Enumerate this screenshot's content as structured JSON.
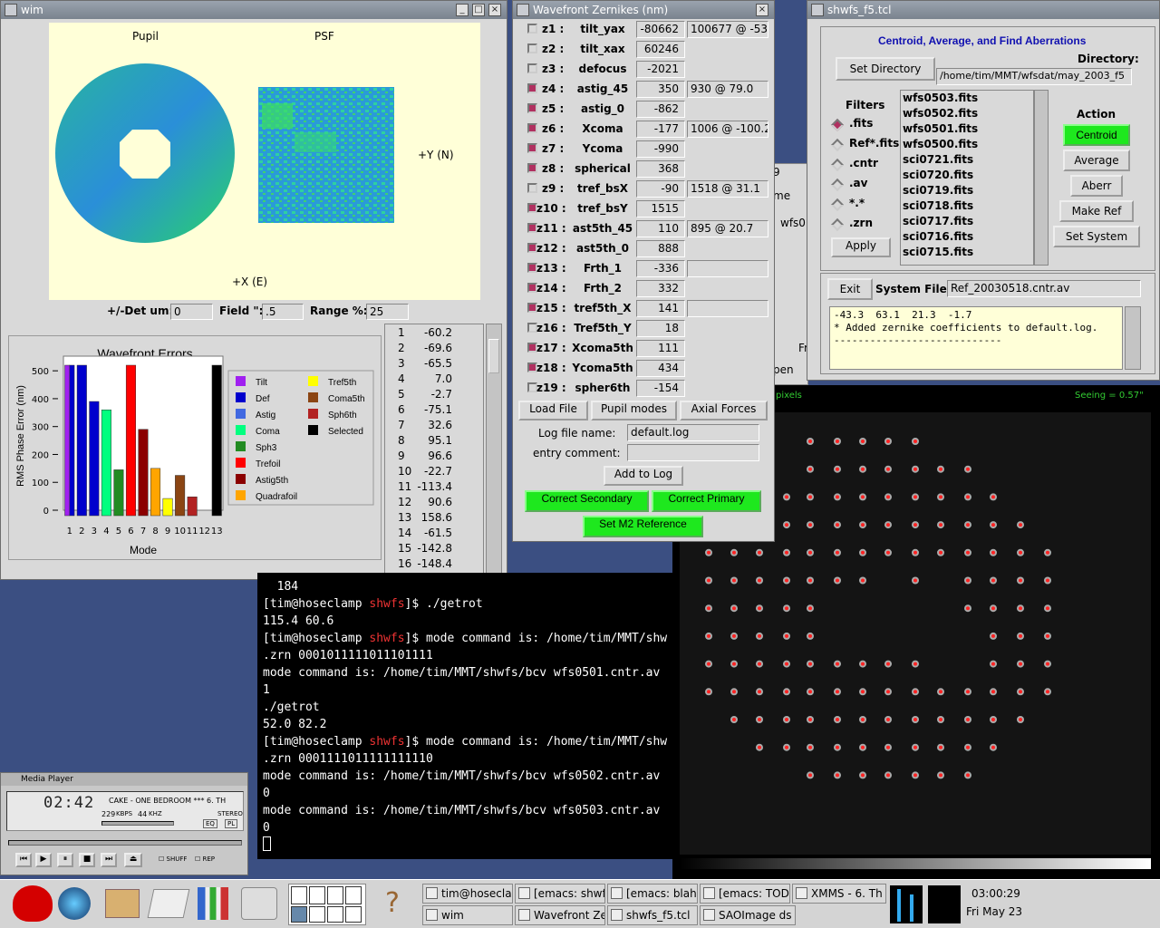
{
  "wim": {
    "title": "wim",
    "pupil_label": "Pupil",
    "psf_label": "PSF",
    "y_axis": "+Y (N)",
    "x_axis": "+X (E)",
    "det_label": "+/-Det um:",
    "det_value": "0",
    "field_label": "Field \":",
    "field_value": ".5",
    "range_label": "Range %:",
    "range_value": "25",
    "list": [
      [
        "1",
        "-60.2"
      ],
      [
        "2",
        "-69.6"
      ],
      [
        "3",
        "-65.5"
      ],
      [
        "4",
        "7.0"
      ],
      [
        "5",
        "-2.7"
      ],
      [
        "6",
        "-75.1"
      ],
      [
        "7",
        "32.6"
      ],
      [
        "8",
        "95.1"
      ],
      [
        "9",
        "96.6"
      ],
      [
        "10",
        "-22.7"
      ],
      [
        "11",
        "-113.4"
      ],
      [
        "12",
        "90.6"
      ],
      [
        "13",
        "158.6"
      ],
      [
        "14",
        "-61.5"
      ],
      [
        "15",
        "-142.8"
      ],
      [
        "16",
        "-148.4"
      ]
    ]
  },
  "chart_data": {
    "type": "bar",
    "title": "Wavefront Errors",
    "xlabel": "Mode",
    "ylabel": "RMS Phase Error (nm)",
    "ylim": [
      0,
      520
    ],
    "categories": [
      "1",
      "2",
      "3",
      "4",
      "5",
      "6",
      "7",
      "8",
      "9",
      "10",
      "11",
      "12",
      "13"
    ],
    "bars": [
      {
        "x": 1,
        "values": [
          527,
          527
        ],
        "colors": [
          "#a020f0",
          "#0000cd"
        ]
      },
      {
        "x": 2,
        "values": [
          527
        ],
        "colors": [
          "#0000cd"
        ]
      },
      {
        "x": 3,
        "values": [
          390
        ],
        "colors": [
          "#0000cd"
        ]
      },
      {
        "x": 4,
        "values": [
          360
        ],
        "colors": [
          "#00ff7f"
        ]
      },
      {
        "x": 5,
        "values": [
          145
        ],
        "colors": [
          "#228b22"
        ]
      },
      {
        "x": 6,
        "values": [
          527
        ],
        "colors": [
          "#ff0000"
        ]
      },
      {
        "x": 7,
        "values": [
          290
        ],
        "colors": [
          "#8b0000"
        ]
      },
      {
        "x": 8,
        "values": [
          150
        ],
        "colors": [
          "#ffa500"
        ]
      },
      {
        "x": 9,
        "values": [
          42
        ],
        "colors": [
          "#ffff00"
        ]
      },
      {
        "x": 10,
        "values": [
          125
        ],
        "colors": [
          "#8b4513"
        ]
      },
      {
        "x": 11,
        "values": [
          48
        ],
        "colors": [
          "#b22222"
        ]
      },
      {
        "x": 13,
        "values": [
          527
        ],
        "colors": [
          "#000000"
        ]
      }
    ],
    "yticks": [
      "0",
      "100",
      "200",
      "300",
      "400",
      "500"
    ],
    "legend": [
      {
        "name": "Tilt",
        "color": "#a020f0"
      },
      {
        "name": "Def",
        "color": "#0000cd"
      },
      {
        "name": "Astig",
        "color": "#4169e1"
      },
      {
        "name": "Coma",
        "color": "#00ff7f"
      },
      {
        "name": "Sph3",
        "color": "#228b22"
      },
      {
        "name": "Trefoil",
        "color": "#ff0000"
      },
      {
        "name": "Astig5th",
        "color": "#8b0000"
      },
      {
        "name": "Quadrafoil",
        "color": "#ffa500"
      },
      {
        "name": "Tref5th",
        "color": "#ffff00"
      },
      {
        "name": "Coma5th",
        "color": "#8b4513"
      },
      {
        "name": "Sph6th",
        "color": "#b22222"
      },
      {
        "name": "Selected",
        "color": "#000000"
      }
    ],
    "legend_placement": "right"
  },
  "zern": {
    "title": "Wavefront Zernikes (nm)",
    "rows": [
      {
        "id": "z1 :",
        "name": "tilt_yax",
        "val": "-80662",
        "ext": "100677 @ -53.",
        "on": false
      },
      {
        "id": "z2 :",
        "name": "tilt_xax",
        "val": "60246",
        "ext": "",
        "on": false
      },
      {
        "id": "z3 :",
        "name": "defocus",
        "val": "-2021",
        "ext": "",
        "on": false
      },
      {
        "id": "z4 :",
        "name": "astig_45",
        "val": "350",
        "ext": "930 @ 79.0",
        "on": true
      },
      {
        "id": "z5 :",
        "name": "astig_0",
        "val": "-862",
        "ext": "",
        "on": true
      },
      {
        "id": "z6 :",
        "name": "Xcoma",
        "val": "-177",
        "ext": "1006 @ -100.2",
        "on": true
      },
      {
        "id": "z7 :",
        "name": "Ycoma",
        "val": "-990",
        "ext": "",
        "on": true
      },
      {
        "id": "z8 :",
        "name": "spherical",
        "val": "368",
        "ext": "",
        "on": true
      },
      {
        "id": "z9 :",
        "name": "tref_bsX",
        "val": "-90",
        "ext": "1518 @ 31.1",
        "on": false
      },
      {
        "id": "z10 :",
        "name": "tref_bsY",
        "val": "1515",
        "ext": "",
        "on": true
      },
      {
        "id": "z11 :",
        "name": "ast5th_45",
        "val": "110",
        "ext": "895 @ 20.7",
        "on": true
      },
      {
        "id": "z12 :",
        "name": "ast5th_0",
        "val": "888",
        "ext": "",
        "on": true
      },
      {
        "id": "z13 :",
        "name": "Frth_1",
        "val": "-336",
        "ext": "",
        "on": true
      },
      {
        "id": "z14 :",
        "name": "Frth_2",
        "val": "332",
        "ext": "",
        "on": true
      },
      {
        "id": "z15 :",
        "name": "tref5th_X",
        "val": "141",
        "ext": "",
        "on": true
      },
      {
        "id": "z16 :",
        "name": "Tref5th_Y",
        "val": "18",
        "ext": "",
        "on": false
      },
      {
        "id": "z17 :",
        "name": "Xcoma5th",
        "val": "111",
        "ext": "",
        "on": true
      },
      {
        "id": "z18 :",
        "name": "Ycoma5th",
        "val": "434",
        "ext": "",
        "on": true
      },
      {
        "id": "z19 :",
        "name": "spher6th",
        "val": "-154",
        "ext": "",
        "on": false
      }
    ],
    "load_file": "Load File",
    "pupil_modes": "Pupil modes",
    "axial_forces": "Axial Forces",
    "log_label": "Log file name:",
    "log_value": "default.log",
    "comment_label": "entry comment:",
    "add_log": "Add to Log",
    "correct_secondary": "Correct Secondary",
    "correct_primary": "Correct Primary",
    "set_m2": "Set M2 Reference"
  },
  "shwfs": {
    "title": "shwfs_f5.tcl",
    "heading": "Centroid, Average, and Find Aberrations",
    "set_dir": "Set Directory",
    "dir_label": "Directory:",
    "dir_value": "/home/tim/MMT/wfsdat/may_2003_f5",
    "filters_label": "Filters",
    "filters": [
      ".fits",
      "Ref*.fits",
      ".cntr",
      ".av",
      "*.*",
      ".zrn"
    ],
    "apply": "Apply",
    "files": [
      "wfs0503.fits",
      "wfs0502.fits",
      "wfs0501.fits",
      "wfs0500.fits",
      "sci0721.fits",
      "sci0720.fits",
      "sci0719.fits",
      "sci0718.fits",
      "sci0717.fits",
      "sci0716.fits",
      "sci0715.fits"
    ],
    "action_label": "Action",
    "centroid": "Centroid",
    "average": "Average",
    "aberr": "Aberr",
    "make_ref": "Make Ref",
    "set_system": "Set System",
    "exit": "Exit",
    "sysfile_label": "System File:",
    "sysfile_value": "Ref_20030518.cntr.av",
    "log": [
      "-43.3  63.1  21.3  -1.7",
      "* Added zernike coefficients to default.log.",
      "----------------------------"
    ]
  },
  "sao": {
    "pixels": "pixels",
    "seeing": "Seeing = 0.57\"",
    "frag1": "9",
    "frag2": "me",
    "frag3": "wfs0",
    "frag4": "Fr",
    "frag5": "pen"
  },
  "terminal": {
    "lines": [
      {
        "t": "  184"
      },
      {
        "p": [
          "[tim@hoseclamp ",
          "shwfs",
          "]$ "
        ],
        "t": "./getrot"
      },
      {
        "t": "115.4 60.6"
      },
      {
        "p": [
          "[tim@hoseclamp ",
          "shwfs",
          "]$ "
        ],
        "t": "mode command is: /home/tim/MMT/shw"
      },
      {
        "t": ".zrn 0001011111011101111"
      },
      {
        "t": "mode command is: /home/tim/MMT/shwfs/bcv wfs0501.cntr.av"
      },
      {
        "t": "1"
      },
      {
        "t": "./getrot"
      },
      {
        "t": "52.0 82.2"
      },
      {
        "p": [
          "[tim@hoseclamp ",
          "shwfs",
          "]$ "
        ],
        "t": "mode command is: /home/tim/MMT/shw"
      },
      {
        "t": ".zrn 0001111011111111110"
      },
      {
        "t": "mode command is: /home/tim/MMT/shwfs/bcv wfs0502.cntr.av"
      },
      {
        "t": "0"
      },
      {
        "t": "mode command is: /home/tim/MMT/shwfs/bcv wfs0503.cntr.av"
      },
      {
        "t": "0"
      }
    ]
  },
  "player": {
    "title": "Media Player",
    "time": "02:42",
    "track": "CAKE - ONE BEDROOM  *** 6. TH",
    "kbps": "229",
    "khz": "44",
    "kbps_unit": "KBPS",
    "khz_unit": "KHZ",
    "stereo": "STEREO",
    "eq": "EQ",
    "pl": "PL",
    "shuff": "SHUFF",
    "rep": "REP"
  },
  "taskbar": {
    "tasks_top": [
      "tim@hoseclar",
      "[emacs: shwf:",
      "[emacs: blah.",
      "[emacs: TOD(",
      "XMMS - 6. Th"
    ],
    "tasks_bottom": [
      "wim",
      "Wavefront Zer",
      "shwfs_f5.tcl",
      "SAOImage ds"
    ],
    "time": "03:00:29",
    "date": "Fri May 23"
  }
}
